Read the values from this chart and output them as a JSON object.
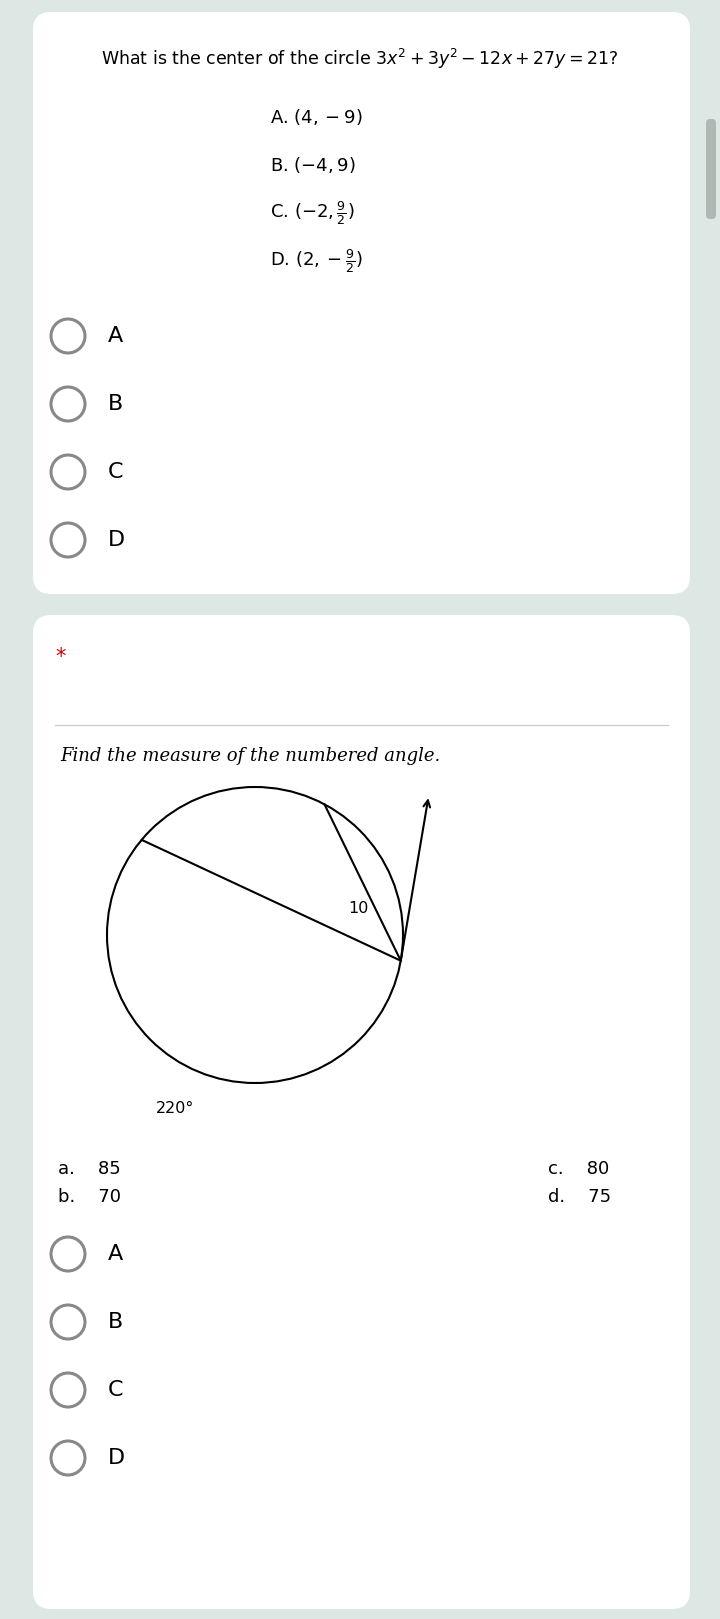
{
  "bg_color": "#dde8e4",
  "card_bg": "#ffffff",
  "q1_title": "What is the center of the circle $3x^2 + 3y^2 - 12x + 27y = 21$?",
  "q1_option_A": "A. $(4, -9)$",
  "q1_option_B": "B. $(-4, 9)$",
  "q1_option_C": "C. $(-2, \\frac{9}{2})$",
  "q1_option_D": "D. $(2, -\\frac{9}{2})$",
  "q1_radio_labels": [
    "A",
    "B",
    "C",
    "D"
  ],
  "q2_star": "*",
  "q2_title": "Find the measure of the numbered angle.",
  "q2_arc_label": "220°",
  "q2_angle_label": "10",
  "q2_options_left_a": "a.    85",
  "q2_options_left_b": "b.    70",
  "q2_options_right_c": "c.    80",
  "q2_options_right_d": "d.    75",
  "q2_radio_labels": [
    "A",
    "B",
    "C",
    "D"
  ],
  "radio_color": "#888888",
  "title_color": "#000000",
  "option_color": "#000000",
  "star_color": "#cc0000",
  "separator_color": "#cccccc"
}
